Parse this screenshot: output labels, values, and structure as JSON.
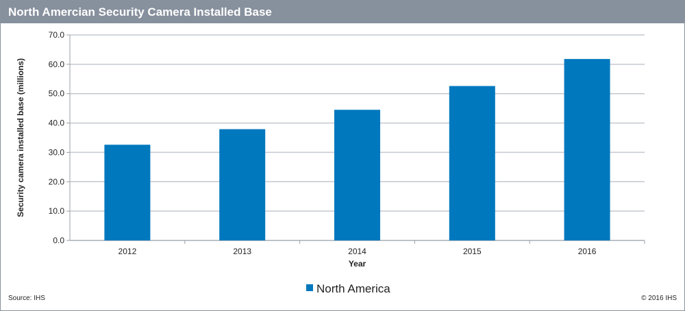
{
  "header": {
    "title": "North Amercian Security Camera Installed Base"
  },
  "footer": {
    "source": "Source: IHS",
    "copyright": "© 2016 IHS"
  },
  "chart_data": {
    "type": "bar",
    "categories": [
      "2012",
      "2013",
      "2014",
      "2015",
      "2016"
    ],
    "series": [
      {
        "name": "North America",
        "values": [
          32.6,
          37.9,
          44.5,
          52.6,
          61.8
        ],
        "color": "#0078be"
      }
    ],
    "xlabel": "Year",
    "ylabel": "Security camera installed base (millions)",
    "ylim": [
      0,
      70
    ],
    "yticks": [
      "0.0",
      "10.0",
      "20.0",
      "30.0",
      "40.0",
      "50.0",
      "60.0",
      "70.0"
    ],
    "grid": true,
    "legend": "bottom"
  }
}
